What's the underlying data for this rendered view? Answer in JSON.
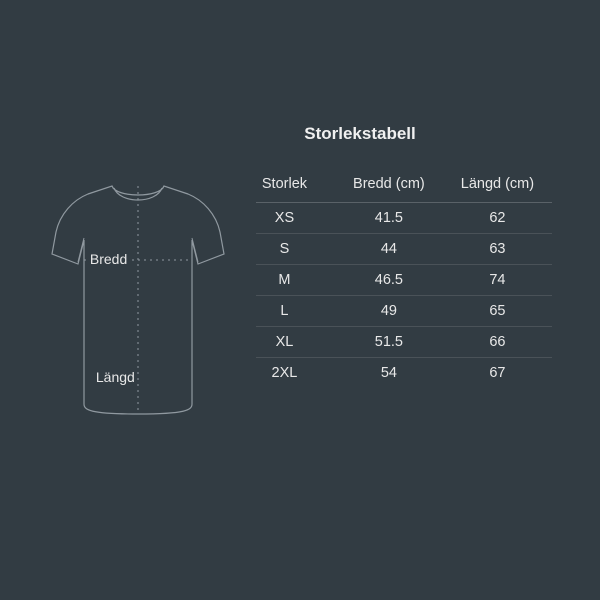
{
  "title": "Storlekstabell",
  "diagram": {
    "label_width": "Bredd",
    "label_length": "Längd",
    "stroke_color": "#9099a0",
    "dash_color": "#9099a0",
    "bg_color": "#323c43"
  },
  "table": {
    "columns": [
      "Storlek",
      "Bredd (cm)",
      "Längd (cm)"
    ],
    "rows": [
      [
        "XS",
        "41.5",
        "62"
      ],
      [
        "S",
        "44",
        "63"
      ],
      [
        "M",
        "46.5",
        "74"
      ],
      [
        "L",
        "49",
        "65"
      ],
      [
        "XL",
        "51.5",
        "66"
      ],
      [
        "2XL",
        "54",
        "67"
      ]
    ],
    "header_border_color": "#5a6268",
    "row_border_color": "#4a5258",
    "text_color": "#e8e8e8",
    "fontsize": 14.5
  },
  "background_color": "#323c43"
}
